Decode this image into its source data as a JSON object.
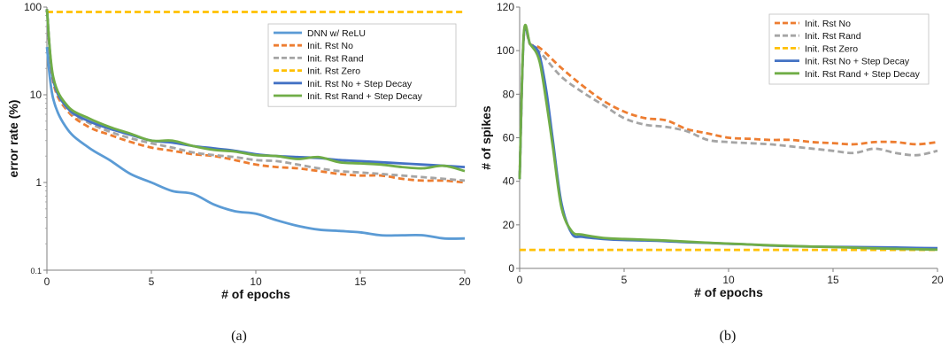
{
  "chart_data": [
    {
      "type": "line",
      "panel_label": "(a)",
      "xlabel": "# of epochs",
      "ylabel": "error rate (%)",
      "yscale": "log",
      "xlim": [
        0,
        20
      ],
      "ylim": [
        0.1,
        100
      ],
      "x_ticks": [
        0,
        5,
        10,
        15,
        20
      ],
      "y_ticks": [
        0.1,
        1,
        10,
        100
      ],
      "y_tick_labels": [
        "0.1",
        "1",
        "10",
        "100"
      ],
      "legend": "top-right",
      "series": [
        {
          "name": "DNN w/ ReLU",
          "color": "#5B9BD5",
          "dash": "solid",
          "x": [
            0,
            0.3,
            1,
            2,
            3,
            4,
            5,
            6,
            7,
            8,
            9,
            10,
            11,
            12,
            13,
            14,
            15,
            16,
            17,
            18,
            19,
            20
          ],
          "y": [
            35,
            9,
            4.0,
            2.5,
            1.8,
            1.25,
            1.0,
            0.8,
            0.74,
            0.56,
            0.47,
            0.44,
            0.37,
            0.32,
            0.29,
            0.28,
            0.27,
            0.25,
            0.25,
            0.25,
            0.23,
            0.23
          ]
        },
        {
          "name": "Init. Rst No",
          "color": "#ED7D31",
          "dash": "dashed",
          "x": [
            0,
            0.3,
            1,
            2,
            3,
            4,
            5,
            6,
            7,
            8,
            9,
            10,
            11,
            12,
            13,
            14,
            15,
            16,
            17,
            18,
            19,
            20
          ],
          "y": [
            95,
            14,
            6.5,
            4.3,
            3.5,
            2.9,
            2.5,
            2.3,
            2.1,
            2.0,
            1.8,
            1.6,
            1.5,
            1.45,
            1.35,
            1.25,
            1.2,
            1.2,
            1.1,
            1.05,
            1.05,
            1.0
          ]
        },
        {
          "name": "Init. Rst Rand",
          "color": "#A5A5A5",
          "dash": "dashed",
          "x": [
            0,
            0.3,
            1,
            2,
            3,
            4,
            5,
            6,
            7,
            8,
            9,
            10,
            11,
            12,
            13,
            14,
            15,
            16,
            17,
            18,
            19,
            20
          ],
          "y": [
            95,
            15,
            6.8,
            4.8,
            3.8,
            3.2,
            2.8,
            2.5,
            2.2,
            2.05,
            1.95,
            1.8,
            1.75,
            1.6,
            1.45,
            1.35,
            1.3,
            1.25,
            1.2,
            1.15,
            1.1,
            1.05
          ]
        },
        {
          "name": "Init. Rst Zero",
          "color": "#FFC000",
          "dash": "dashed",
          "x": [
            0,
            20
          ],
          "y": [
            88,
            88
          ]
        },
        {
          "name": "Init. Rst No + Step Decay",
          "color": "#4472C4",
          "dash": "solid",
          "x": [
            0,
            0.3,
            1,
            2,
            3,
            4,
            5,
            6,
            7,
            8,
            9,
            10,
            11,
            12,
            13,
            14,
            15,
            16,
            17,
            18,
            19,
            20
          ],
          "y": [
            95,
            15,
            7.0,
            5.0,
            4.1,
            3.5,
            3.0,
            2.85,
            2.6,
            2.45,
            2.3,
            2.1,
            2.0,
            1.95,
            1.9,
            1.8,
            1.75,
            1.7,
            1.65,
            1.6,
            1.55,
            1.5
          ]
        },
        {
          "name": "Init. Rst Rand + Step Decay",
          "color": "#70AD47",
          "dash": "solid",
          "x": [
            0,
            0.3,
            1,
            2,
            3,
            4,
            5,
            6,
            7,
            8,
            9,
            10,
            11,
            12,
            13,
            14,
            15,
            16,
            17,
            18,
            19,
            20
          ],
          "y": [
            95,
            16,
            7.4,
            5.4,
            4.3,
            3.6,
            3.0,
            3.0,
            2.6,
            2.35,
            2.25,
            2.05,
            2.0,
            1.85,
            1.95,
            1.7,
            1.65,
            1.6,
            1.5,
            1.45,
            1.55,
            1.35
          ]
        }
      ]
    },
    {
      "type": "line",
      "panel_label": "(b)",
      "xlabel": "# of epochs",
      "ylabel": "# of spikes",
      "yscale": "linear",
      "xlim": [
        0,
        20
      ],
      "ylim": [
        0,
        120
      ],
      "x_ticks": [
        0,
        5,
        10,
        15,
        20
      ],
      "y_ticks": [
        0,
        20,
        40,
        60,
        80,
        100,
        120
      ],
      "y_tick_labels": [
        "0",
        "20",
        "40",
        "60",
        "80",
        "100",
        "120"
      ],
      "legend": "top-right",
      "series": [
        {
          "name": "Init. Rst No",
          "color": "#ED7D31",
          "dash": "dashed",
          "x": [
            0,
            0.2,
            0.5,
            1,
            2,
            3,
            4,
            5,
            6,
            7,
            8,
            9,
            10,
            11,
            12,
            13,
            14,
            15,
            16,
            17,
            18,
            19,
            20
          ],
          "y": [
            42,
            107,
            103,
            101,
            92,
            84,
            77,
            72,
            69,
            68,
            64,
            62,
            60,
            59.5,
            59,
            59,
            58,
            57.5,
            57,
            58,
            58,
            57,
            58
          ]
        },
        {
          "name": "Init. Rst Rand",
          "color": "#A5A5A5",
          "dash": "dashed",
          "x": [
            0,
            0.2,
            0.5,
            1,
            2,
            3,
            4,
            5,
            6,
            7,
            8,
            9,
            10,
            11,
            12,
            13,
            14,
            15,
            16,
            17,
            18,
            19,
            20
          ],
          "y": [
            42,
            107,
            103,
            99,
            88,
            81,
            75,
            69,
            66,
            65,
            63,
            59,
            58,
            57.5,
            57,
            56,
            55,
            54,
            53,
            55,
            53,
            52,
            54
          ]
        },
        {
          "name": "Init. Rst Zero",
          "color": "#FFC000",
          "dash": "dashed",
          "x": [
            0,
            20
          ],
          "y": [
            8.5,
            8.5
          ]
        },
        {
          "name": "Init. Rst No + Step Decay",
          "color": "#4472C4",
          "dash": "solid",
          "x": [
            0,
            0.2,
            0.5,
            0.8,
            1.0,
            1.3,
            1.6,
            2.0,
            2.5,
            3,
            4,
            5,
            6,
            7,
            8,
            9,
            10,
            11,
            12,
            13,
            14,
            15,
            16,
            17,
            18,
            19,
            20
          ],
          "y": [
            41,
            107,
            103,
            101,
            96,
            80,
            58,
            30,
            16,
            14.5,
            13.5,
            13,
            12.8,
            12.5,
            12,
            11.7,
            11.3,
            11,
            10.5,
            10.2,
            10,
            9.9,
            9.8,
            9.7,
            9.6,
            9.4,
            9.3
          ]
        },
        {
          "name": "Init. Rst Rand + Step Decay",
          "color": "#70AD47",
          "dash": "solid",
          "x": [
            0,
            0.2,
            0.5,
            0.8,
            1.0,
            1.3,
            1.6,
            2.0,
            2.5,
            3,
            4,
            5,
            6,
            7,
            8,
            9,
            10,
            11,
            12,
            13,
            14,
            15,
            16,
            17,
            18,
            19,
            20
          ],
          "y": [
            41,
            108,
            103,
            99,
            93,
            75,
            55,
            28,
            17,
            15.5,
            14,
            13.5,
            13.2,
            12.8,
            12.3,
            11.8,
            11.4,
            11,
            10.6,
            10.3,
            10,
            9.8,
            9.5,
            9.2,
            9,
            8.8,
            8.6
          ]
        }
      ]
    }
  ]
}
